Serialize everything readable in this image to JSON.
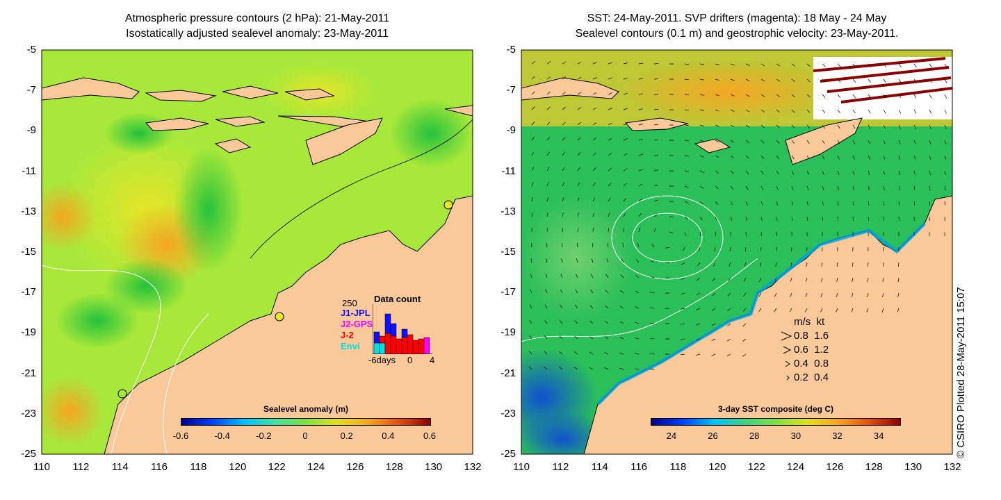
{
  "left_panel": {
    "title_line1": "Atmospheric pressure contours (2 hPa): 21-May-2011",
    "title_line2": "Isostatically adjusted sealevel anomaly: 23-May-2011",
    "colorbar_title": "Sealevel anomaly (m)",
    "colorbar_ticks": [
      "-0.6",
      "-0.4",
      "-0.2",
      "0",
      "0.2",
      "0.4",
      "0.6"
    ],
    "colorbar_range": [
      -0.6,
      0.6
    ],
    "data_count": {
      "title": "Data count",
      "max_label": "250",
      "series": [
        {
          "name": "J1-JPL",
          "color": "#1010ff"
        },
        {
          "name": "J2-GPS",
          "color": "#ff00ff"
        },
        {
          "name": "J-2",
          "color": "#ff0000"
        },
        {
          "name": "Envi",
          "color": "#00e0e0"
        }
      ],
      "x_label_left": "-6days",
      "x_label_mid": "0",
      "x_label_right": "4"
    }
  },
  "right_panel": {
    "title_line1": "SST: 24-May-2011. SVP drifters (magenta): 18 May - 24 May",
    "title_line2": "Sealevel contours (0.1 m) and geostrophic velocity: 23-May-2011.",
    "colorbar_title": "3-day SST composite (deg C)",
    "colorbar_ticks": [
      "24",
      "26",
      "28",
      "30",
      "32",
      "34"
    ],
    "colorbar_range": [
      23,
      35
    ],
    "velocity_legend": {
      "header": "m/s  kt",
      "rows": [
        "0.8  1.6",
        "0.6  1.2",
        "0.4  0.8",
        "0.2  0.4"
      ]
    }
  },
  "axes": {
    "lat_ticks": [
      "-5",
      "-7",
      "-9",
      "-11",
      "-13",
      "-15",
      "-17",
      "-19",
      "-21",
      "-23",
      "-25"
    ],
    "lon_ticks": [
      "110",
      "112",
      "114",
      "116",
      "118",
      "120",
      "122",
      "124",
      "126",
      "128",
      "130",
      "132"
    ],
    "lat_range": [
      -25,
      -5
    ],
    "lon_range": [
      110,
      132
    ]
  },
  "copyright": "© CSIRO Plotted 28-May-2011 15:07",
  "colors": {
    "land": "#f9c99a",
    "sla_base": "#a8e83a",
    "sst_base": "#2bbf5a"
  }
}
